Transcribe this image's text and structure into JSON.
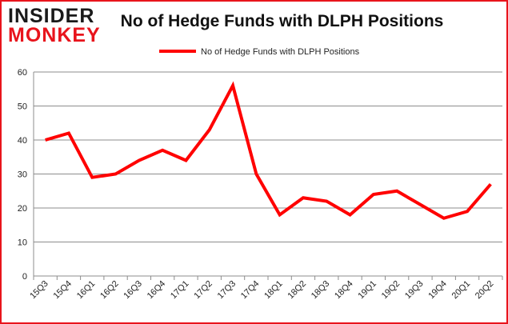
{
  "logo": {
    "line1": "INSIDER",
    "line2": "MONKEY"
  },
  "chart_data": {
    "type": "line",
    "title": "No of Hedge Funds with DLPH Positions",
    "categories": [
      "15Q3",
      "15Q4",
      "16Q1",
      "16Q2",
      "16Q3",
      "16Q4",
      "17Q1",
      "17Q2",
      "17Q3",
      "17Q4",
      "18Q1",
      "18Q2",
      "18Q3",
      "18Q4",
      "19Q1",
      "19Q2",
      "19Q3",
      "19Q4",
      "20Q1",
      "20Q2"
    ],
    "series": [
      {
        "name": "No of Hedge Funds with DLPH Positions",
        "values": [
          40,
          42,
          29,
          30,
          34,
          37,
          34,
          43,
          56,
          30,
          18,
          23,
          22,
          18,
          24,
          25,
          21,
          17,
          19,
          27
        ],
        "color": "#ff0000"
      }
    ],
    "ylim": [
      0,
      60
    ],
    "yticks": [
      0,
      10,
      20,
      30,
      40,
      50,
      60
    ],
    "grid": true,
    "legend": "top"
  }
}
